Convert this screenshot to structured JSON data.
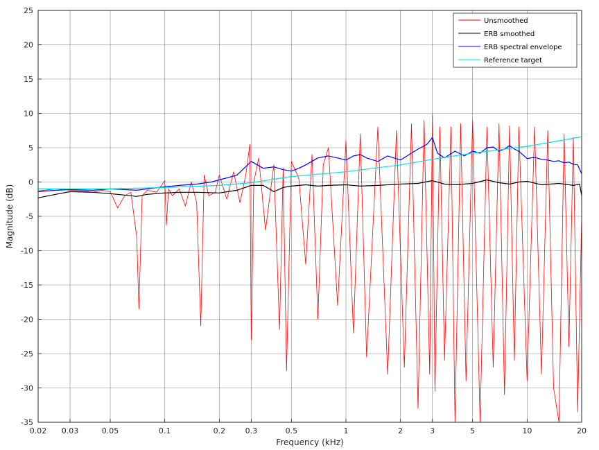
{
  "chart_data": {
    "type": "line",
    "xscale": "log",
    "xlabel": "Frequency (kHz)",
    "ylabel": "Magnitude (dB)",
    "xlim": [
      0.02,
      20
    ],
    "ylim": [
      -35,
      25
    ],
    "grid": true,
    "legend_position": "top-right",
    "x_ticks": [
      {
        "value": 0.02,
        "label": "0.02"
      },
      {
        "value": 0.03,
        "label": "0.03"
      },
      {
        "value": 0.05,
        "label": "0.05"
      },
      {
        "value": 0.1,
        "label": "0.1"
      },
      {
        "value": 0.2,
        "label": "0.2"
      },
      {
        "value": 0.3,
        "label": "0.3"
      },
      {
        "value": 0.5,
        "label": "0.5"
      },
      {
        "value": 1,
        "label": "1"
      },
      {
        "value": 2,
        "label": "2"
      },
      {
        "value": 3,
        "label": "3"
      },
      {
        "value": 5,
        "label": "5"
      },
      {
        "value": 10,
        "label": "10"
      },
      {
        "value": 20,
        "label": "20"
      }
    ],
    "y_ticks": [
      {
        "value": 25,
        "label": "25"
      },
      {
        "value": 20,
        "label": "20"
      },
      {
        "value": 15,
        "label": "15"
      },
      {
        "value": 10,
        "label": "10"
      },
      {
        "value": 5,
        "label": "5"
      },
      {
        "value": 0,
        "label": "0"
      },
      {
        "value": -5,
        "label": "-5"
      },
      {
        "value": -10,
        "label": "-10"
      },
      {
        "value": -15,
        "label": "-15"
      },
      {
        "value": -20,
        "label": "-20"
      },
      {
        "value": -25,
        "label": "-25"
      },
      {
        "value": -30,
        "label": "-30"
      },
      {
        "value": -35,
        "label": "-35"
      }
    ],
    "series": [
      {
        "name": "Unsmoothed",
        "color": "#ff0000",
        "x": [
          0.02,
          0.025,
          0.03,
          0.035,
          0.04,
          0.045,
          0.05,
          0.055,
          0.06,
          0.065,
          0.07,
          0.072,
          0.075,
          0.08,
          0.09,
          0.1,
          0.102,
          0.105,
          0.11,
          0.12,
          0.13,
          0.14,
          0.15,
          0.158,
          0.165,
          0.175,
          0.19,
          0.2,
          0.22,
          0.24,
          0.26,
          0.28,
          0.295,
          0.3,
          0.31,
          0.33,
          0.36,
          0.4,
          0.43,
          0.45,
          0.47,
          0.5,
          0.55,
          0.6,
          0.65,
          0.7,
          0.75,
          0.8,
          0.9,
          1.0,
          1.1,
          1.2,
          1.3,
          1.5,
          1.7,
          1.9,
          2.1,
          2.3,
          2.5,
          2.7,
          2.9,
          3.0,
          3.1,
          3.3,
          3.5,
          3.8,
          4.0,
          4.3,
          4.6,
          5.0,
          5.5,
          6.0,
          6.5,
          7.0,
          7.5,
          8.0,
          8.5,
          9.0,
          10.0,
          11.0,
          12.0,
          13.0,
          14.0,
          15.0,
          16.0,
          17.0,
          18.0,
          19.0,
          20.0
        ],
        "values": [
          -1.3,
          -1.0,
          -1.2,
          -1.3,
          -1.5,
          -1.2,
          -1.4,
          -3.8,
          -2.0,
          -1.5,
          -8.0,
          -18.5,
          -2.0,
          -1.2,
          -1.5,
          0.2,
          -6.3,
          -1.0,
          -2.0,
          -1.0,
          -3.5,
          0.0,
          -3.0,
          -21.0,
          1.0,
          -2.0,
          -1.5,
          1.0,
          -2.5,
          1.5,
          -3.0,
          1.0,
          5.5,
          -23.0,
          0.0,
          3.5,
          -7.0,
          2.5,
          -21.5,
          2.0,
          -27.5,
          3.0,
          0.5,
          -12.0,
          4.0,
          -20.0,
          2.5,
          5.0,
          -18.0,
          6.0,
          -22.0,
          7.0,
          -25.5,
          8.0,
          -28.0,
          7.5,
          -27.0,
          8.5,
          -33.0,
          9.0,
          -28.0,
          9.8,
          -30.5,
          8.0,
          -26.0,
          8.0,
          -35.0,
          8.5,
          -29.0,
          9.0,
          -35.0,
          8.0,
          -27.0,
          8.5,
          -31.0,
          8.2,
          -26.0,
          8.0,
          -29.0,
          8.0,
          -28.0,
          7.5,
          -30.0,
          -35.0,
          7.0,
          -24.0,
          6.5,
          -33.5,
          -5.0
        ]
      },
      {
        "name": "ERB smoothed",
        "color": "#000000",
        "x": [
          0.02,
          0.025,
          0.03,
          0.04,
          0.05,
          0.06,
          0.07,
          0.08,
          0.1,
          0.12,
          0.15,
          0.2,
          0.25,
          0.3,
          0.35,
          0.4,
          0.45,
          0.5,
          0.6,
          0.7,
          0.8,
          1.0,
          1.2,
          1.5,
          2.0,
          2.5,
          3.0,
          3.5,
          4.0,
          5.0,
          6.0,
          7.0,
          8.0,
          9.0,
          10.0,
          12.0,
          15.0,
          18.0,
          19.5,
          20.0
        ],
        "values": [
          -2.3,
          -1.8,
          -1.4,
          -1.5,
          -1.7,
          -1.9,
          -2.1,
          -1.8,
          -1.6,
          -1.5,
          -1.5,
          -1.6,
          -1.2,
          -0.5,
          -0.5,
          -1.4,
          -0.8,
          -0.6,
          -0.4,
          -0.6,
          -0.5,
          -0.4,
          -0.6,
          -0.5,
          -0.3,
          -0.2,
          0.2,
          -0.3,
          -0.4,
          -0.2,
          0.3,
          -0.1,
          -0.3,
          0.0,
          0.1,
          -0.4,
          -0.2,
          -0.5,
          -0.3,
          -2.0
        ]
      },
      {
        "name": "ERB spectral envelope",
        "color": "#0000ff",
        "x": [
          0.02,
          0.025,
          0.03,
          0.04,
          0.05,
          0.06,
          0.07,
          0.08,
          0.1,
          0.12,
          0.15,
          0.18,
          0.2,
          0.25,
          0.3,
          0.35,
          0.4,
          0.45,
          0.5,
          0.55,
          0.6,
          0.7,
          0.8,
          0.9,
          1.0,
          1.1,
          1.2,
          1.3,
          1.5,
          1.7,
          2.0,
          2.3,
          2.5,
          2.8,
          3.0,
          3.2,
          3.5,
          4.0,
          4.5,
          5.0,
          5.5,
          6.0,
          6.5,
          7.0,
          7.5,
          8.0,
          8.5,
          9.0,
          10.0,
          11.0,
          12.0,
          13.0,
          14.0,
          15.0,
          16.0,
          17.0,
          18.0,
          19.0,
          20.0
        ],
        "values": [
          -1.4,
          -1.2,
          -1.1,
          -1.2,
          -1.0,
          -1.1,
          -1.2,
          -1.0,
          -0.7,
          -0.5,
          -0.3,
          0.0,
          0.3,
          1.0,
          3.0,
          2.0,
          2.2,
          1.8,
          1.6,
          2.0,
          2.5,
          3.5,
          3.8,
          3.5,
          3.2,
          3.8,
          4.0,
          3.5,
          3.0,
          3.8,
          3.2,
          4.2,
          4.8,
          5.5,
          6.5,
          4.2,
          3.5,
          4.5,
          3.8,
          4.5,
          4.2,
          5.0,
          5.1,
          4.5,
          4.8,
          5.3,
          4.8,
          4.5,
          3.4,
          3.6,
          3.3,
          3.2,
          3.0,
          3.1,
          2.8,
          2.9,
          2.6,
          2.5,
          1.2
        ]
      },
      {
        "name": "Reference target",
        "color": "#00e0e0",
        "x": [
          0.02,
          0.05,
          0.1,
          0.2,
          0.3,
          0.5,
          1.0,
          2.0,
          3.0,
          5.0,
          10.0,
          15.0,
          20.0
        ],
        "values": [
          -1.0,
          -1.0,
          -0.8,
          -0.5,
          -0.1,
          0.8,
          1.5,
          2.5,
          3.3,
          4.2,
          5.2,
          6.0,
          6.6
        ]
      }
    ]
  }
}
